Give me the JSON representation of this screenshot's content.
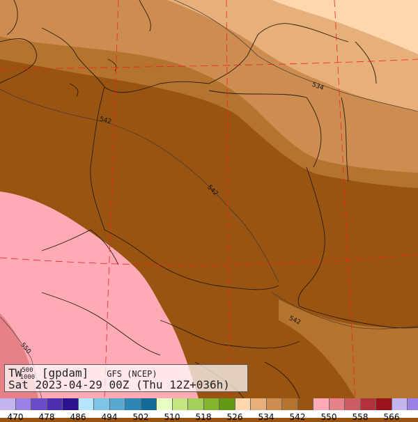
{
  "map": {
    "contour_labels": [
      "534",
      "542",
      "542",
      "542",
      "550"
    ],
    "field_colors": [
      "#ffd7ad",
      "#e7b07a",
      "#cd8d51",
      "#b4732f",
      "#9a5412",
      "#ffaab4",
      "#e58187"
    ]
  },
  "legend": {
    "variable": "TW",
    "sup": "500",
    "sub": "1000",
    "unit": "[gpdam]",
    "model": "GFS (NCEP)",
    "datetime": "Sat 2023-04-29 00Z (Thu 12Z+036h)"
  },
  "colorbar": {
    "colors": [
      "#c3b4f0",
      "#9b80e6",
      "#6b4cc8",
      "#4b2fb0",
      "#2d1290",
      "#b4e6ff",
      "#7ec4e6",
      "#58a8d2",
      "#2e86b6",
      "#126a9a",
      "#e6ffc3",
      "#c3e682",
      "#a2d05a",
      "#82b42e",
      "#629812",
      "#ffd7ad",
      "#e7b07a",
      "#cd8d51",
      "#b4732f",
      "#9a5412",
      "#ffaab4",
      "#e58187",
      "#cc5c63",
      "#b2323c",
      "#9a121a",
      "#c3b4f0",
      "#9b80e6"
    ],
    "ticks": [
      "470",
      "478",
      "486",
      "494",
      "502",
      "510",
      "518",
      "526",
      "534",
      "542",
      "550",
      "558",
      "566"
    ]
  }
}
